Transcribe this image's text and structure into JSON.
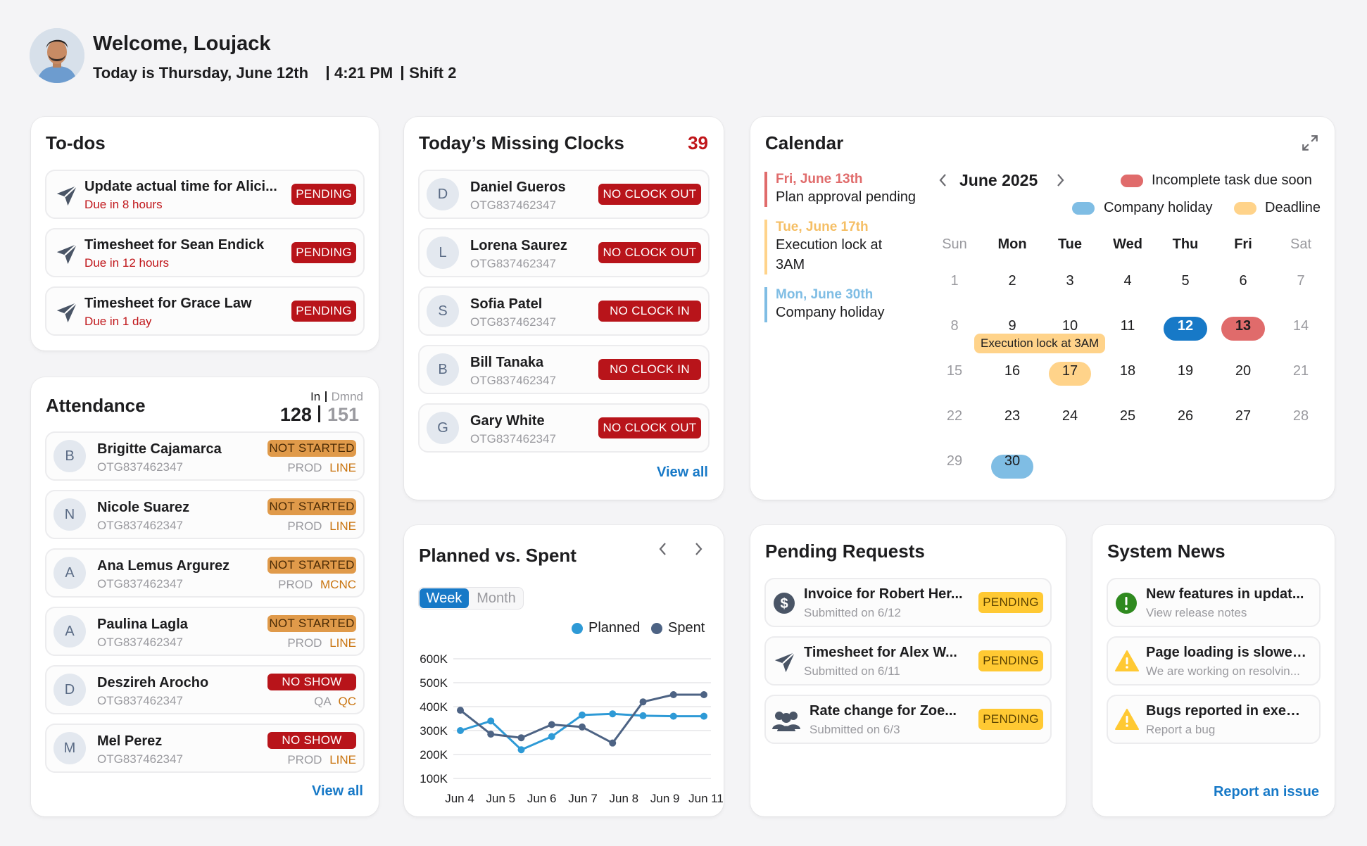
{
  "header": {
    "welcome": "Welcome, Loujack",
    "today": "Today is Thursday, June 12th",
    "time": "4:21 PM",
    "shift": "Shift 2"
  },
  "todos": {
    "title": "To-dos",
    "items": [
      {
        "title": "Update actual time for Alici...",
        "due": "Due in 8 hours",
        "status": "PENDING"
      },
      {
        "title": "Timesheet for Sean Endick",
        "due": "Due in 12 hours",
        "status": "PENDING"
      },
      {
        "title": "Timesheet for Grace Law",
        "due": "Due in 1 day",
        "status": "PENDING"
      }
    ]
  },
  "attendance": {
    "title": "Attendance",
    "in_label": "In",
    "dmnd_label": "Dmnd",
    "in_value": "128",
    "dmnd_value": "151",
    "view_all": "View all",
    "items": [
      {
        "initial": "B",
        "name": "Brigitte Cajamarca",
        "id": "OTG837462347",
        "status": "NOT STARTED",
        "dept": "PROD",
        "area": "LINE"
      },
      {
        "initial": "N",
        "name": "Nicole Suarez",
        "id": "OTG837462347",
        "status": "NOT STARTED",
        "dept": "PROD",
        "area": "LINE"
      },
      {
        "initial": "A",
        "name": "Ana Lemus Argurez",
        "id": "OTG837462347",
        "status": "NOT STARTED",
        "dept": "PROD",
        "area": "MCNC"
      },
      {
        "initial": "A",
        "name": "Paulina Lagla",
        "id": "OTG837462347",
        "status": "NOT STARTED",
        "dept": "PROD",
        "area": "LINE"
      },
      {
        "initial": "D",
        "name": "Deszireh Arocho",
        "id": "OTG837462347",
        "status": "NO SHOW",
        "dept": "QA",
        "area": "QC"
      },
      {
        "initial": "M",
        "name": "Mel Perez",
        "id": "OTG837462347",
        "status": "NO SHOW",
        "dept": "PROD",
        "area": "LINE"
      }
    ]
  },
  "missing": {
    "title": "Today’s Missing Clocks",
    "count": "39",
    "view_all": "View all",
    "items": [
      {
        "initial": "D",
        "name": "Daniel Gueros",
        "id": "OTG837462347",
        "status": "NO CLOCK OUT"
      },
      {
        "initial": "L",
        "name": "Lorena Saurez",
        "id": "OTG837462347",
        "status": "NO CLOCK OUT"
      },
      {
        "initial": "S",
        "name": "Sofia Patel",
        "id": "OTG837462347",
        "status": "NO CLOCK IN"
      },
      {
        "initial": "B",
        "name": "Bill Tanaka",
        "id": "OTG837462347",
        "status": "NO CLOCK IN"
      },
      {
        "initial": "G",
        "name": "Gary White",
        "id": "OTG837462347",
        "status": "NO CLOCK OUT"
      }
    ]
  },
  "calendar": {
    "title": "Calendar",
    "month": "June 2025",
    "legend": {
      "incomplete": "Incomplete task due soon",
      "holiday": "Company holiday",
      "deadline": "Deadline"
    },
    "colors": {
      "incomplete": "#e06b6b",
      "holiday": "#7fbde4",
      "deadline": "#ffd38a",
      "today": "#1779c7"
    },
    "events": [
      {
        "date": "Fri, June 13th",
        "desc": "Plan approval pending"
      },
      {
        "date": "Tue, June 17th",
        "desc": "Execution lock at 3AM"
      },
      {
        "date": "Mon, June 30th",
        "desc": "Company holiday"
      }
    ],
    "weekdays": [
      "Sun",
      "Mon",
      "Tue",
      "Wed",
      "Thu",
      "Fri",
      "Sat"
    ],
    "tooltip": "Execution lock at 3AM",
    "days": [
      "1",
      "2",
      "3",
      "4",
      "5",
      "6",
      "7",
      "8",
      "9",
      "10",
      "11",
      "12",
      "13",
      "14",
      "15",
      "16",
      "17",
      "18",
      "19",
      "20",
      "21",
      "22",
      "23",
      "24",
      "25",
      "26",
      "27",
      "28",
      "29",
      "30"
    ]
  },
  "planned": {
    "title": "Planned vs. Spent",
    "tab_week": "Week",
    "tab_month": "Month"
  },
  "chart_data": {
    "type": "line",
    "categories": [
      "Jun 4",
      "Jun 5",
      "Jun 6",
      "Jun 7",
      "Jun 8",
      "Jun 9",
      "Jun 11"
    ],
    "x": [
      0,
      1,
      2,
      3,
      4,
      5,
      6,
      7,
      8
    ],
    "series": [
      {
        "name": "Planned",
        "color": "#2e9ad6",
        "values": [
          300,
          340,
          220,
          275,
          365,
          370,
          362,
          360,
          360
        ]
      },
      {
        "name": "Spent",
        "color": "#4d6384",
        "values": [
          385,
          285,
          270,
          325,
          315,
          248,
          420,
          450,
          450
        ]
      }
    ],
    "yticks": [
      "600K",
      "500K",
      "400K",
      "300K",
      "200K",
      "100K"
    ],
    "ylim": [
      100,
      600
    ]
  },
  "pending": {
    "title": "Pending Requests",
    "items": [
      {
        "title": "Invoice for Robert Her...",
        "sub": "Submitted on 6/12",
        "status": "PENDING"
      },
      {
        "title": "Timesheet for Alex W...",
        "sub": "Submitted on 6/11",
        "status": "PENDING"
      },
      {
        "title": "Rate change for Zoe...",
        "sub": "Submitted on 6/3",
        "status": "PENDING"
      }
    ]
  },
  "news": {
    "title": "System News",
    "report": "Report an issue",
    "items": [
      {
        "title": "New features in updat...",
        "sub": "View release notes"
      },
      {
        "title": "Page loading is slower...",
        "sub": "We are working on resolvin..."
      },
      {
        "title": "Bugs reported in execu...",
        "sub": "Report a bug"
      }
    ]
  }
}
